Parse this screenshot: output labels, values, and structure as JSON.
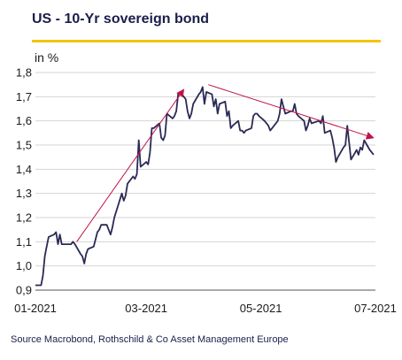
{
  "title": "US - 10-Yr sovereign bond",
  "accent_color": "#f1c50a",
  "line_color": "#2a2a55",
  "arrow_color": "#c0134a",
  "chart_data": {
    "type": "line",
    "ylabel": "in %",
    "ylim": [
      0.9,
      1.8
    ],
    "yticks": [
      "0,9",
      "1,0",
      "1,1",
      "1,2",
      "1,3",
      "1,4",
      "1,5",
      "1,6",
      "1,7",
      "1,8"
    ],
    "xticks": [
      {
        "x": "2021-01-01",
        "label": "01-2021"
      },
      {
        "x": "2021-03-01",
        "label": "03-2021"
      },
      {
        "x": "2021-05-01",
        "label": "05-2021"
      },
      {
        "x": "2021-07-01",
        "label": "07-2021"
      }
    ],
    "xlim": [
      "2021-01-01",
      "2021-07-01"
    ],
    "grid": "horizontal",
    "series": [
      {
        "points": [
          [
            "2021-01-01",
            0.92
          ],
          [
            "2021-01-04",
            0.92
          ],
          [
            "2021-01-05",
            0.96
          ],
          [
            "2021-01-06",
            1.04
          ],
          [
            "2021-01-07",
            1.08
          ],
          [
            "2021-01-08",
            1.12
          ],
          [
            "2021-01-11",
            1.13
          ],
          [
            "2021-01-12",
            1.14
          ],
          [
            "2021-01-13",
            1.09
          ],
          [
            "2021-01-14",
            1.13
          ],
          [
            "2021-01-15",
            1.09
          ],
          [
            "2021-01-19",
            1.09
          ],
          [
            "2021-01-20",
            1.09
          ],
          [
            "2021-01-21",
            1.1
          ],
          [
            "2021-01-22",
            1.09
          ],
          [
            "2021-01-25",
            1.05
          ],
          [
            "2021-01-26",
            1.04
          ],
          [
            "2021-01-27",
            1.01
          ],
          [
            "2021-01-28",
            1.05
          ],
          [
            "2021-01-29",
            1.07
          ],
          [
            "2021-02-01",
            1.08
          ],
          [
            "2021-02-02",
            1.11
          ],
          [
            "2021-02-03",
            1.14
          ],
          [
            "2021-02-04",
            1.15
          ],
          [
            "2021-02-05",
            1.17
          ],
          [
            "2021-02-08",
            1.17
          ],
          [
            "2021-02-09",
            1.15
          ],
          [
            "2021-02-10",
            1.13
          ],
          [
            "2021-02-11",
            1.16
          ],
          [
            "2021-02-12",
            1.2
          ],
          [
            "2021-02-16",
            1.3
          ],
          [
            "2021-02-17",
            1.27
          ],
          [
            "2021-02-18",
            1.29
          ],
          [
            "2021-02-19",
            1.34
          ],
          [
            "2021-02-22",
            1.37
          ],
          [
            "2021-02-23",
            1.36
          ],
          [
            "2021-02-24",
            1.38
          ],
          [
            "2021-02-25",
            1.52
          ],
          [
            "2021-02-26",
            1.41
          ],
          [
            "2021-03-01",
            1.43
          ],
          [
            "2021-03-02",
            1.42
          ],
          [
            "2021-03-03",
            1.47
          ],
          [
            "2021-03-04",
            1.57
          ],
          [
            "2021-03-05",
            1.57
          ],
          [
            "2021-03-08",
            1.59
          ],
          [
            "2021-03-09",
            1.53
          ],
          [
            "2021-03-10",
            1.52
          ],
          [
            "2021-03-11",
            1.54
          ],
          [
            "2021-03-12",
            1.63
          ],
          [
            "2021-03-15",
            1.61
          ],
          [
            "2021-03-16",
            1.62
          ],
          [
            "2021-03-17",
            1.64
          ],
          [
            "2021-03-18",
            1.71
          ],
          [
            "2021-03-19",
            1.72
          ],
          [
            "2021-03-22",
            1.69
          ],
          [
            "2021-03-23",
            1.64
          ],
          [
            "2021-03-24",
            1.61
          ],
          [
            "2021-03-25",
            1.63
          ],
          [
            "2021-03-26",
            1.67
          ],
          [
            "2021-03-29",
            1.71
          ],
          [
            "2021-03-30",
            1.72
          ],
          [
            "2021-03-31",
            1.74
          ],
          [
            "2021-04-01",
            1.67
          ],
          [
            "2021-04-02",
            1.72
          ],
          [
            "2021-04-05",
            1.71
          ],
          [
            "2021-04-06",
            1.66
          ],
          [
            "2021-04-07",
            1.69
          ],
          [
            "2021-04-08",
            1.63
          ],
          [
            "2021-04-09",
            1.67
          ],
          [
            "2021-04-12",
            1.68
          ],
          [
            "2021-04-13",
            1.62
          ],
          [
            "2021-04-14",
            1.64
          ],
          [
            "2021-04-15",
            1.57
          ],
          [
            "2021-04-16",
            1.58
          ],
          [
            "2021-04-19",
            1.6
          ],
          [
            "2021-04-20",
            1.56
          ],
          [
            "2021-04-21",
            1.56
          ],
          [
            "2021-04-22",
            1.55
          ],
          [
            "2021-04-23",
            1.56
          ],
          [
            "2021-04-26",
            1.57
          ],
          [
            "2021-04-27",
            1.62
          ],
          [
            "2021-04-28",
            1.63
          ],
          [
            "2021-04-29",
            1.63
          ],
          [
            "2021-04-30",
            1.62
          ],
          [
            "2021-05-03",
            1.6
          ],
          [
            "2021-05-04",
            1.59
          ],
          [
            "2021-05-05",
            1.58
          ],
          [
            "2021-05-06",
            1.56
          ],
          [
            "2021-05-07",
            1.57
          ],
          [
            "2021-05-10",
            1.6
          ],
          [
            "2021-05-11",
            1.63
          ],
          [
            "2021-05-12",
            1.69
          ],
          [
            "2021-05-13",
            1.66
          ],
          [
            "2021-05-14",
            1.63
          ],
          [
            "2021-05-17",
            1.64
          ],
          [
            "2021-05-18",
            1.64
          ],
          [
            "2021-05-19",
            1.67
          ],
          [
            "2021-05-20",
            1.63
          ],
          [
            "2021-05-21",
            1.62
          ],
          [
            "2021-05-24",
            1.6
          ],
          [
            "2021-05-25",
            1.56
          ],
          [
            "2021-05-26",
            1.58
          ],
          [
            "2021-05-27",
            1.61
          ],
          [
            "2021-05-28",
            1.59
          ],
          [
            "2021-06-01",
            1.6
          ],
          [
            "2021-06-02",
            1.59
          ],
          [
            "2021-06-03",
            1.62
          ],
          [
            "2021-06-04",
            1.55
          ],
          [
            "2021-06-07",
            1.56
          ],
          [
            "2021-06-08",
            1.53
          ],
          [
            "2021-06-09",
            1.49
          ],
          [
            "2021-06-10",
            1.43
          ],
          [
            "2021-06-11",
            1.45
          ],
          [
            "2021-06-14",
            1.49
          ],
          [
            "2021-06-15",
            1.5
          ],
          [
            "2021-06-16",
            1.58
          ],
          [
            "2021-06-17",
            1.51
          ],
          [
            "2021-06-18",
            1.44
          ],
          [
            "2021-06-21",
            1.48
          ],
          [
            "2021-06-22",
            1.46
          ],
          [
            "2021-06-23",
            1.49
          ],
          [
            "2021-06-24",
            1.48
          ],
          [
            "2021-06-25",
            1.52
          ],
          [
            "2021-06-28",
            1.48
          ],
          [
            "2021-06-29",
            1.47
          ],
          [
            "2021-06-30",
            1.46
          ]
        ]
      }
    ],
    "annotations": [
      {
        "type": "arrow",
        "from": [
          "2021-01-23",
          1.1
        ],
        "to": [
          "2021-03-21",
          1.73
        ]
      },
      {
        "type": "arrow",
        "from": [
          "2021-04-03",
          1.75
        ],
        "to": [
          "2021-06-30",
          1.53
        ]
      }
    ]
  },
  "source": "Source Macrobond, Rothschild & Co Asset Management Europe"
}
